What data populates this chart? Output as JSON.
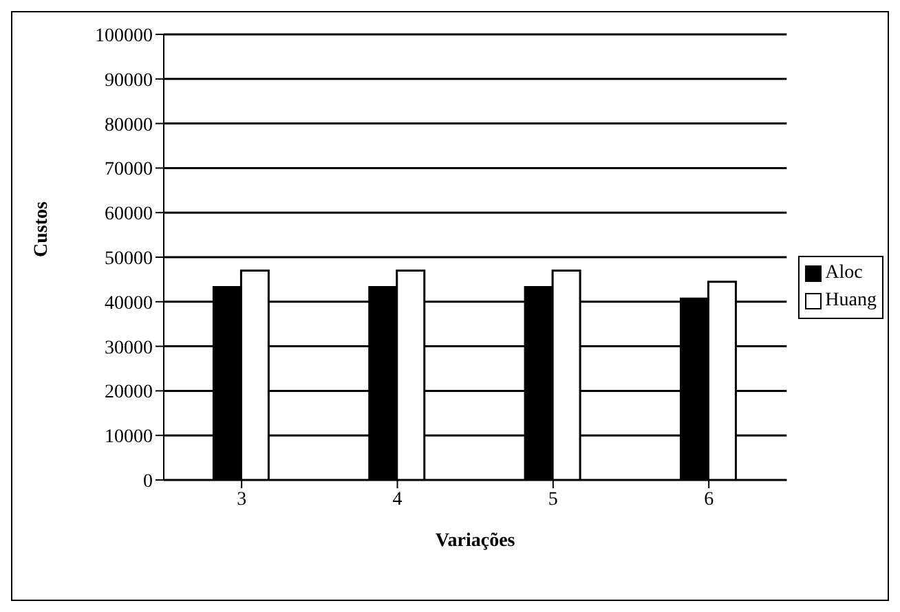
{
  "chart_data": {
    "type": "bar",
    "categories": [
      "3",
      "4",
      "5",
      "6"
    ],
    "xlabel": "Variações",
    "ylabel": "Custos",
    "series": [
      {
        "name": "Aloc",
        "color": "#000000",
        "values": [
          43300,
          43300,
          43300,
          40700
        ]
      },
      {
        "name": "Huang",
        "color": "#ffffff",
        "values": [
          47000,
          47000,
          47000,
          44500
        ]
      }
    ],
    "ylim": [
      0,
      100000
    ],
    "yticks": [
      0,
      10000,
      20000,
      30000,
      40000,
      50000,
      60000,
      70000,
      80000,
      90000,
      100000
    ],
    "grid": "y",
    "legend": "right"
  }
}
